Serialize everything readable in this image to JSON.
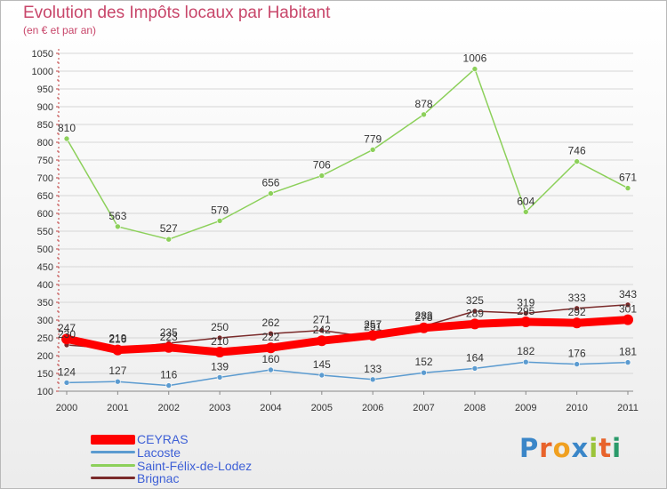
{
  "title": "Evolution des Impôts locaux par Habitant",
  "subtitle": "(en € et par an)",
  "logo": {
    "text": "Proxiti",
    "letter_colors": [
      "#3a86c8",
      "#e8632b",
      "#f0a020",
      "#3a86c8",
      "#9bc43a",
      "#e8632b",
      "#2a9a6a"
    ]
  },
  "chart_data": {
    "type": "line",
    "title": "Evolution des Impôts locaux par Habitant",
    "subtitle": "(en € et par an)",
    "x": [
      "2000",
      "2001",
      "2002",
      "2003",
      "2004",
      "2005",
      "2006",
      "2007",
      "2008",
      "2009",
      "2010",
      "2011"
    ],
    "ylim": [
      100,
      1050
    ],
    "yticks": [
      100,
      150,
      200,
      250,
      300,
      350,
      400,
      450,
      500,
      550,
      600,
      650,
      700,
      750,
      800,
      850,
      900,
      950,
      1000,
      1050
    ],
    "grid": "horizontal",
    "legend": "bottom-left",
    "series": [
      {
        "name": "CEYRAS",
        "color": "#ff0000",
        "values": [
          247,
          216,
          223,
          210,
          222,
          242,
          257,
          278,
          289,
          295,
          292,
          301
        ]
      },
      {
        "name": "Lacoste",
        "color": "#5b9bd0",
        "values": [
          124,
          127,
          116,
          139,
          160,
          145,
          133,
          152,
          164,
          182,
          176,
          181
        ]
      },
      {
        "name": "Saint-Félix-de-Lodez",
        "color": "#8cd05a",
        "values": [
          810,
          563,
          527,
          579,
          656,
          706,
          779,
          878,
          1006,
          604,
          746,
          671
        ]
      },
      {
        "name": "Brignac",
        "color": "#7a2a2a",
        "values": [
          230,
          219,
          235,
          250,
          262,
          271,
          251,
          283,
          325,
          319,
          333,
          343
        ]
      }
    ]
  }
}
